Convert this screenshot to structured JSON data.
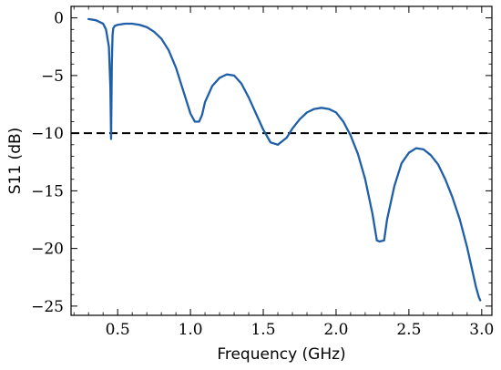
{
  "chart_data": {
    "type": "line",
    "title": "",
    "xlabel": "Frequency (GHz)",
    "ylabel": "S11 (dB)",
    "xlim": [
      0.18,
      3.07
    ],
    "ylim": [
      -25.8,
      1.0
    ],
    "xticks": [
      0.5,
      1.0,
      1.5,
      2.0,
      2.5,
      3.0
    ],
    "xtick_labels": [
      "0.5",
      "1.0",
      "1.5",
      "2.0",
      "2.5",
      "3.0"
    ],
    "yticks": [
      0,
      -5,
      -10,
      -15,
      -20,
      -25
    ],
    "ytick_labels": [
      "0",
      "−5",
      "−10",
      "−15",
      "−20",
      "−25"
    ],
    "grid": false,
    "line_color": "#1f5fa8",
    "reference_line": {
      "y": -10,
      "style": "dashed",
      "color": "#000000"
    },
    "series": [
      {
        "x": [
          0.3,
          0.35,
          0.4,
          0.42,
          0.44,
          0.45,
          0.455,
          0.46,
          0.465,
          0.47,
          0.48,
          0.5,
          0.55,
          0.6,
          0.65,
          0.7,
          0.75,
          0.8,
          0.85,
          0.9,
          0.95,
          1.0,
          1.03,
          1.06,
          1.08,
          1.1,
          1.15,
          1.2,
          1.25,
          1.3,
          1.35,
          1.4,
          1.45,
          1.5,
          1.55,
          1.6,
          1.63,
          1.66,
          1.7,
          1.75,
          1.8,
          1.85,
          1.9,
          1.95,
          2.0,
          2.05,
          2.1,
          2.15,
          2.2,
          2.25,
          2.28,
          2.3,
          2.33,
          2.35,
          2.4,
          2.45,
          2.5,
          2.55,
          2.6,
          2.65,
          2.7,
          2.75,
          2.8,
          2.85,
          2.9,
          2.93,
          2.96,
          2.98,
          2.99
        ],
        "y": [
          -0.1,
          -0.2,
          -0.5,
          -1.0,
          -2.5,
          -6.0,
          -10.5,
          -4.0,
          -1.5,
          -0.9,
          -0.7,
          -0.6,
          -0.5,
          -0.5,
          -0.6,
          -0.8,
          -1.2,
          -1.8,
          -2.8,
          -4.3,
          -6.3,
          -8.3,
          -9.0,
          -9.0,
          -8.4,
          -7.3,
          -5.9,
          -5.2,
          -4.9,
          -5.0,
          -5.7,
          -6.9,
          -8.3,
          -9.7,
          -10.8,
          -11.0,
          -10.7,
          -10.4,
          -9.6,
          -8.8,
          -8.2,
          -7.9,
          -7.8,
          -7.9,
          -8.2,
          -9.0,
          -10.2,
          -11.8,
          -14.0,
          -17.0,
          -19.3,
          -19.4,
          -19.3,
          -17.5,
          -14.6,
          -12.6,
          -11.7,
          -11.3,
          -11.4,
          -11.9,
          -12.7,
          -14.0,
          -15.6,
          -17.5,
          -19.9,
          -21.6,
          -23.3,
          -24.2,
          -24.5
        ]
      }
    ]
  }
}
